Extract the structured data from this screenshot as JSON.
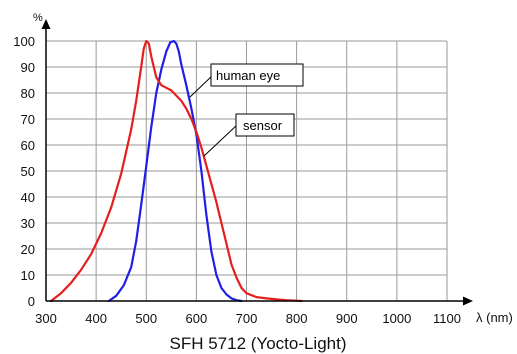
{
  "chart_data": {
    "type": "line",
    "title": "SFH 5712 (Yocto-Light)",
    "y_unit_label": "%",
    "x_unit_label": "λ (nm)",
    "xlim": [
      300,
      1100
    ],
    "ylim": [
      0,
      100
    ],
    "x_ticks": [
      300,
      400,
      500,
      600,
      700,
      800,
      900,
      1000,
      1100
    ],
    "y_ticks": [
      0,
      10,
      20,
      30,
      40,
      50,
      60,
      70,
      80,
      90,
      100
    ],
    "grid": true,
    "series": [
      {
        "name": "human eye",
        "color": "#1f1fe6",
        "x": [
          425,
          440,
          455,
          470,
          480,
          490,
          500,
          510,
          520,
          530,
          540,
          548,
          555,
          560,
          565,
          570,
          580,
          590,
          600,
          610,
          620,
          630,
          640,
          650,
          660,
          670,
          680,
          690
        ],
        "y": [
          0,
          2,
          6,
          13,
          23,
          37,
          52,
          67,
          80,
          89,
          96,
          99.5,
          100,
          99,
          96,
          91,
          83,
          74,
          64,
          50,
          33,
          19,
          10,
          5,
          2.5,
          1,
          0.3,
          0
        ]
      },
      {
        "name": "sensor",
        "color": "#e61e1e",
        "x": [
          310,
          330,
          350,
          370,
          390,
          410,
          430,
          450,
          470,
          480,
          490,
          495,
          500,
          505,
          510,
          520,
          530,
          540,
          550,
          560,
          570,
          580,
          590,
          600,
          610,
          620,
          630,
          640,
          650,
          660,
          670,
          680,
          690,
          700,
          720,
          740,
          760,
          780,
          800,
          810
        ],
        "y": [
          0,
          3,
          7,
          12,
          18,
          26,
          36,
          49,
          66,
          77,
          90,
          97,
          100,
          99,
          94,
          86,
          83,
          82,
          81,
          79,
          77,
          74,
          70,
          65,
          59,
          52,
          45,
          38,
          30,
          22,
          14,
          9,
          5,
          3,
          1.5,
          1,
          0.6,
          0.3,
          0.1,
          0
        ]
      }
    ]
  }
}
